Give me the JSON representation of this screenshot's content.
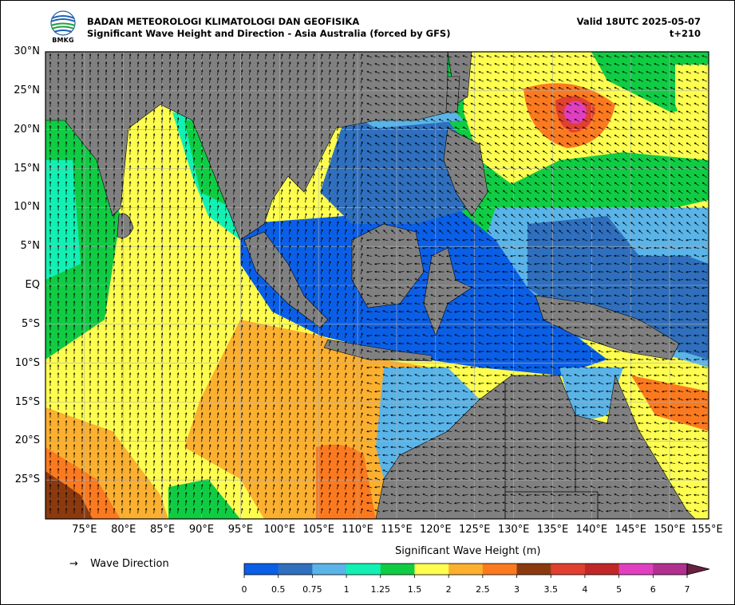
{
  "header": {
    "logo_text": "BMKG",
    "agency": "BADAN METEOROLOGI KLIMATOLOGI DAN GEOFISIKA",
    "product": "Significant Wave Height and Direction - Asia Australia (forced by GFS)",
    "valid": "Valid 18UTC 2025-05-07",
    "forecast_step": "t+210"
  },
  "axes": {
    "lat_ticks": [
      "30°N",
      "25°N",
      "20°N",
      "15°N",
      "10°N",
      "5°N",
      "EQ",
      "5°S",
      "10°S",
      "15°S",
      "20°S",
      "25°S"
    ],
    "lon_ticks": [
      "75°E",
      "80°E",
      "85°E",
      "90°E",
      "95°E",
      "100°E",
      "105°E",
      "110°E",
      "115°E",
      "120°E",
      "125°E",
      "130°E",
      "135°E",
      "140°E",
      "145°E",
      "150°E",
      "155°E"
    ],
    "lat_range": [
      -30,
      30
    ],
    "lon_range": [
      70,
      155
    ]
  },
  "legend": {
    "arrow_symbol": "→",
    "direction_label": "Wave Direction",
    "colorbar_title": "Significant Wave Height (m)",
    "colorbar_ticks": [
      "0",
      "0.5",
      "0.75",
      "1",
      "1.25",
      "1.5",
      "2",
      "2.5",
      "3",
      "3.5",
      "4",
      "5",
      "6",
      "7"
    ],
    "colorbar_colors": [
      "#0a5fe6",
      "#2f6fbd",
      "#5ab4e8",
      "#12f0b4",
      "#10cc44",
      "#fefe50",
      "#fbb030",
      "#fb7a20",
      "#8b3a10",
      "#e04030",
      "#c02828",
      "#e040c0",
      "#b03090"
    ],
    "extend_color": "#6a2040"
  },
  "colors": {
    "land": "#808080",
    "grid": "#b0b0b0",
    "arrow": "#000000"
  }
}
